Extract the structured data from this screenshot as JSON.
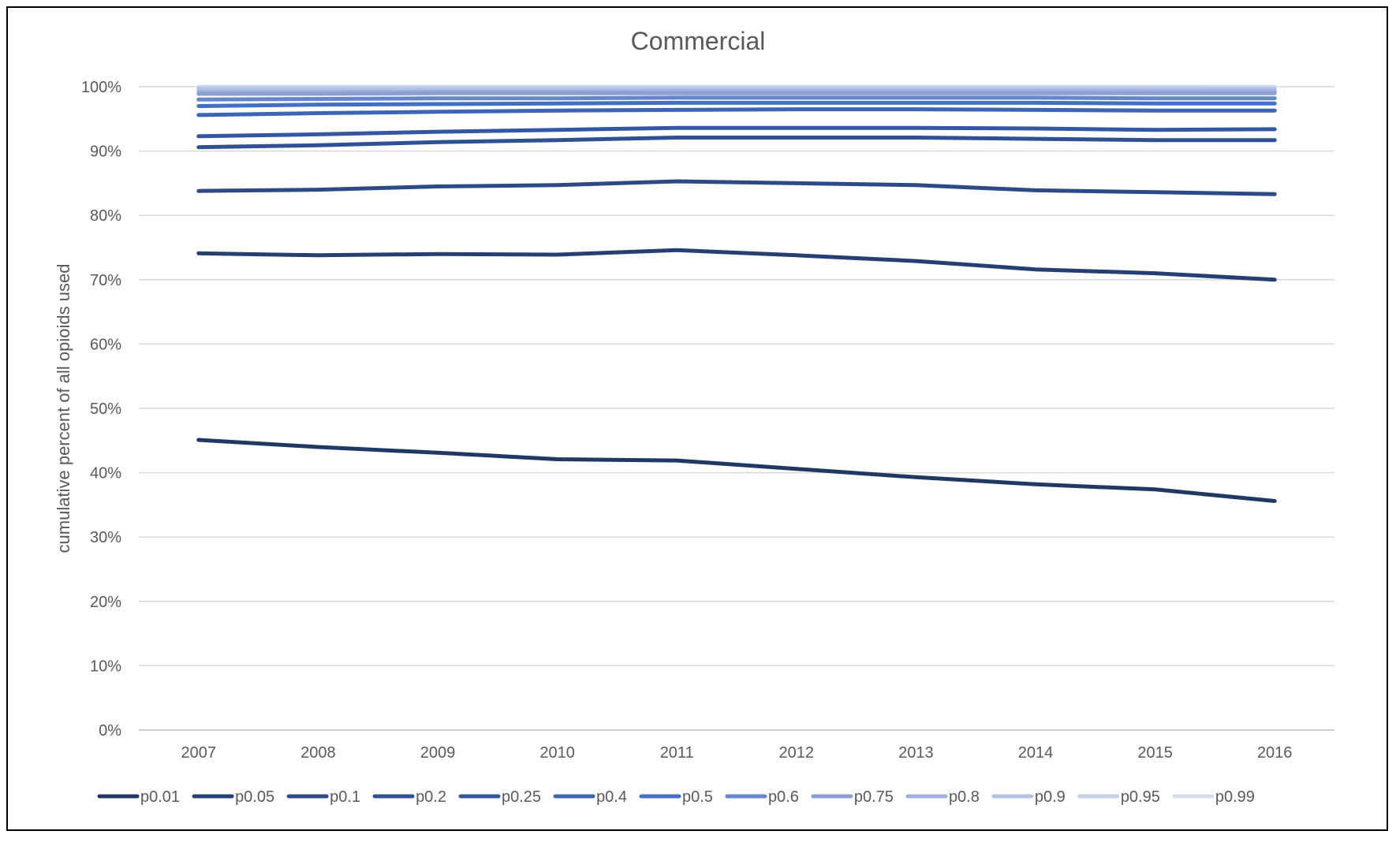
{
  "chart_data": {
    "type": "line",
    "title": "Commercial",
    "xlabel": "",
    "ylabel": "cumulative percent of all opioids used",
    "x": [
      "2007",
      "2008",
      "2009",
      "2010",
      "2011",
      "2012",
      "2013",
      "2014",
      "2015",
      "2016"
    ],
    "ylim": [
      0,
      100
    ],
    "y_ticks": [
      "0%",
      "10%",
      "20%",
      "30%",
      "40%",
      "50%",
      "60%",
      "70%",
      "80%",
      "90%",
      "100%"
    ],
    "y_tick_values": [
      0,
      10,
      20,
      30,
      40,
      50,
      60,
      70,
      80,
      90,
      100
    ],
    "grid": "horizontal",
    "legend_position": "bottom",
    "series": [
      {
        "name": "p0.01",
        "color": "#203864",
        "values": [
          45.1,
          44.0,
          43.1,
          42.1,
          41.9,
          40.6,
          39.3,
          38.2,
          37.4,
          35.6
        ]
      },
      {
        "name": "p0.05",
        "color": "#263f72",
        "values": [
          74.1,
          73.8,
          74.0,
          73.9,
          74.6,
          73.8,
          72.9,
          71.6,
          71.0,
          70.0
        ]
      },
      {
        "name": "p0.1",
        "color": "#2c4a85",
        "values": [
          83.8,
          84.0,
          84.5,
          84.7,
          85.3,
          85.0,
          84.7,
          83.9,
          83.6,
          83.3
        ]
      },
      {
        "name": "p0.2",
        "color": "#2f5092",
        "values": [
          90.6,
          90.9,
          91.4,
          91.7,
          92.1,
          92.1,
          92.1,
          91.9,
          91.7,
          91.7
        ]
      },
      {
        "name": "p0.25",
        "color": "#3357a0",
        "values": [
          92.3,
          92.6,
          93.0,
          93.3,
          93.6,
          93.6,
          93.6,
          93.5,
          93.3,
          93.4
        ]
      },
      {
        "name": "p0.4",
        "color": "#3d65b5",
        "values": [
          95.6,
          95.9,
          96.1,
          96.3,
          96.4,
          96.5,
          96.5,
          96.4,
          96.3,
          96.3
        ]
      },
      {
        "name": "p0.5",
        "color": "#4470c4",
        "values": [
          97.0,
          97.2,
          97.3,
          97.4,
          97.5,
          97.5,
          97.5,
          97.5,
          97.4,
          97.4
        ]
      },
      {
        "name": "p0.6",
        "color": "#6685cc",
        "values": [
          98.0,
          98.1,
          98.2,
          98.2,
          98.3,
          98.3,
          98.3,
          98.3,
          98.2,
          98.2
        ]
      },
      {
        "name": "p0.75",
        "color": "#8b9fd4",
        "values": [
          98.9,
          98.9,
          99.0,
          99.0,
          99.0,
          99.0,
          99.0,
          99.0,
          99.0,
          99.0
        ]
      },
      {
        "name": "p0.8",
        "color": "#9eb0dc",
        "values": [
          99.2,
          99.2,
          99.2,
          99.2,
          99.3,
          99.3,
          99.3,
          99.3,
          99.3,
          99.3
        ]
      },
      {
        "name": "p0.9",
        "color": "#b3c2e4",
        "values": [
          99.6,
          99.6,
          99.6,
          99.6,
          99.6,
          99.6,
          99.6,
          99.6,
          99.6,
          99.6
        ]
      },
      {
        "name": "p0.95",
        "color": "#c5d0ea",
        "values": [
          99.8,
          99.8,
          99.8,
          99.8,
          99.8,
          99.8,
          99.8,
          99.8,
          99.8,
          99.8
        ]
      },
      {
        "name": "p0.99",
        "color": "#d6ddf0",
        "values": [
          100.0,
          100.0,
          100.0,
          100.0,
          100.0,
          100.0,
          100.0,
          100.0,
          100.0,
          100.0
        ]
      }
    ]
  }
}
